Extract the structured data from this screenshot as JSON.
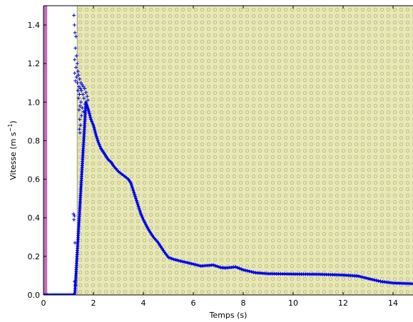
{
  "chart_data": {
    "type": "scatter",
    "xlabel": "Temps (s)",
    "ylabel": "Vitesse (m s",
    "ylabel_exponent": "−1",
    "ylabel_close": ")",
    "xlim": [
      0,
      14.8
    ],
    "ylim": [
      0,
      1.5
    ],
    "x_ticks": [
      0,
      2,
      4,
      6,
      8,
      10,
      12,
      14
    ],
    "x_tick_labels": [
      "0",
      "2",
      "4",
      "6",
      "8",
      "10",
      "12",
      "14"
    ],
    "y_ticks": [
      0.0,
      0.2,
      0.4,
      0.6,
      0.8,
      1.0,
      1.2,
      1.4
    ],
    "y_tick_labels": [
      "0.0",
      "0.2",
      "0.4",
      "0.6",
      "0.8",
      "1.0",
      "1.2",
      "1.4"
    ],
    "marker": "+",
    "series_color": "#0000ee",
    "regions": [
      {
        "x_start": 0,
        "x_end": 0.15,
        "color": "#c070b8",
        "pattern": "solid"
      },
      {
        "x_start": 1.35,
        "x_end": 14.8,
        "color": "#e8e8b4",
        "pattern": "dots"
      }
    ],
    "curve": [
      [
        0.0,
        0.0
      ],
      [
        1.25,
        0.0
      ],
      [
        1.7,
        1.0
      ],
      [
        1.8,
        0.96
      ],
      [
        1.9,
        0.91
      ],
      [
        2.0,
        0.88
      ],
      [
        2.1,
        0.83
      ],
      [
        2.2,
        0.79
      ],
      [
        2.3,
        0.76
      ],
      [
        2.4,
        0.74
      ],
      [
        2.5,
        0.72
      ],
      [
        2.6,
        0.7
      ],
      [
        2.7,
        0.69
      ],
      [
        2.8,
        0.67
      ],
      [
        3.0,
        0.64
      ],
      [
        3.2,
        0.62
      ],
      [
        3.4,
        0.6
      ],
      [
        3.5,
        0.58
      ],
      [
        3.6,
        0.54
      ],
      [
        3.7,
        0.5
      ],
      [
        3.8,
        0.46
      ],
      [
        3.9,
        0.42
      ],
      [
        4.0,
        0.39
      ],
      [
        4.2,
        0.34
      ],
      [
        4.4,
        0.3
      ],
      [
        4.6,
        0.27
      ],
      [
        4.8,
        0.23
      ],
      [
        5.0,
        0.195
      ],
      [
        5.2,
        0.185
      ],
      [
        5.5,
        0.175
      ],
      [
        6.0,
        0.16
      ],
      [
        6.3,
        0.15
      ],
      [
        6.8,
        0.155
      ],
      [
        7.1,
        0.142
      ],
      [
        7.3,
        0.14
      ],
      [
        7.7,
        0.145
      ],
      [
        8.0,
        0.13
      ],
      [
        8.5,
        0.115
      ],
      [
        9.0,
        0.11
      ],
      [
        10.0,
        0.108
      ],
      [
        11.0,
        0.107
      ],
      [
        12.0,
        0.103
      ],
      [
        12.6,
        0.098
      ],
      [
        13.0,
        0.085
      ],
      [
        13.5,
        0.07
      ],
      [
        14.0,
        0.062
      ],
      [
        14.8,
        0.058
      ]
    ],
    "scattered_points": [
      {
        "x": 1.22,
        "y": 1.45
      },
      {
        "x": 1.24,
        "y": 1.4
      },
      {
        "x": 1.26,
        "y": 1.36
      },
      {
        "x": 1.3,
        "y": 1.34
      },
      {
        "x": 1.28,
        "y": 1.28
      },
      {
        "x": 1.32,
        "y": 1.24
      },
      {
        "x": 1.25,
        "y": 1.22
      },
      {
        "x": 1.35,
        "y": 1.2
      },
      {
        "x": 1.3,
        "y": 1.18
      },
      {
        "x": 1.38,
        "y": 1.16
      },
      {
        "x": 1.25,
        "y": 1.15
      },
      {
        "x": 1.4,
        "y": 1.14
      },
      {
        "x": 1.32,
        "y": 1.13
      },
      {
        "x": 1.45,
        "y": 1.12
      },
      {
        "x": 1.28,
        "y": 1.11
      },
      {
        "x": 1.5,
        "y": 1.1
      },
      {
        "x": 1.36,
        "y": 1.1
      },
      {
        "x": 1.55,
        "y": 1.09
      },
      {
        "x": 1.42,
        "y": 1.08
      },
      {
        "x": 1.6,
        "y": 1.08
      },
      {
        "x": 1.48,
        "y": 1.07
      },
      {
        "x": 1.65,
        "y": 1.07
      },
      {
        "x": 1.38,
        "y": 1.06
      },
      {
        "x": 1.52,
        "y": 1.06
      },
      {
        "x": 1.7,
        "y": 1.05
      },
      {
        "x": 1.44,
        "y": 1.04
      },
      {
        "x": 1.58,
        "y": 1.04
      },
      {
        "x": 1.75,
        "y": 1.03
      },
      {
        "x": 1.4,
        "y": 1.02
      },
      {
        "x": 1.62,
        "y": 1.02
      },
      {
        "x": 1.78,
        "y": 1.01
      },
      {
        "x": 1.5,
        "y": 1.0
      },
      {
        "x": 1.66,
        "y": 0.99
      },
      {
        "x": 1.46,
        "y": 0.98
      },
      {
        "x": 1.55,
        "y": 0.97
      },
      {
        "x": 1.42,
        "y": 0.96
      },
      {
        "x": 1.6,
        "y": 0.95
      },
      {
        "x": 1.52,
        "y": 0.93
      },
      {
        "x": 1.45,
        "y": 0.91
      },
      {
        "x": 1.48,
        "y": 0.88
      },
      {
        "x": 1.44,
        "y": 0.86
      },
      {
        "x": 1.46,
        "y": 0.84
      },
      {
        "x": 1.2,
        "y": 0.42
      },
      {
        "x": 1.24,
        "y": 0.41
      },
      {
        "x": 1.22,
        "y": 0.39
      },
      {
        "x": 1.26,
        "y": 0.27
      },
      {
        "x": 1.24,
        "y": 0.07
      },
      {
        "x": 1.28,
        "y": 0.05
      }
    ]
  }
}
